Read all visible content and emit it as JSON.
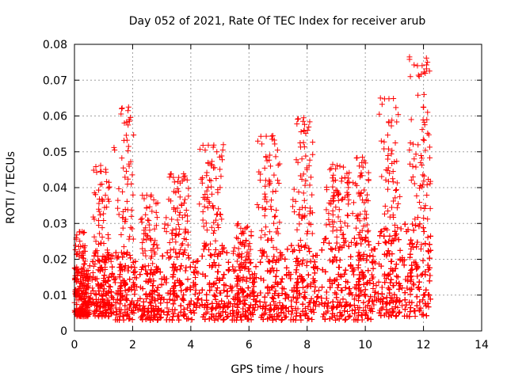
{
  "chart_data": {
    "type": "scatter",
    "title": "Day 052 of 2021, Rate Of TEC Index for receiver arub",
    "xlabel": "GPS time / hours",
    "ylabel": "ROTI / TECUs",
    "xlim": [
      0,
      14
    ],
    "ylim": [
      0,
      0.08
    ],
    "x_ticks": [
      "0",
      "2",
      "4",
      "6",
      "8",
      "10",
      "12",
      "14"
    ],
    "y_ticks": [
      "0",
      "0.01",
      "0.02",
      "0.03",
      "0.04",
      "0.05",
      "0.06",
      "0.07",
      "0.08"
    ],
    "grid": true,
    "marker": "+",
    "color": "#ff0000",
    "x_range_of_data": [
      0,
      12.25
    ],
    "notable_points": [
      {
        "x": 11.52,
        "y": 0.0765
      },
      {
        "x": 11.52,
        "y": 0.0758
      },
      {
        "x": 11.55,
        "y": 0.071
      },
      {
        "x": 10.52,
        "y": 0.065
      },
      {
        "x": 1.86,
        "y": 0.0625
      },
      {
        "x": 1.84,
        "y": 0.0615
      },
      {
        "x": 1.88,
        "y": 0.059
      },
      {
        "x": 7.88,
        "y": 0.0595
      },
      {
        "x": 7.86,
        "y": 0.0585
      },
      {
        "x": 10.48,
        "y": 0.0605
      },
      {
        "x": 11.58,
        "y": 0.059
      },
      {
        "x": 7.9,
        "y": 0.056
      },
      {
        "x": 6.82,
        "y": 0.0545
      },
      {
        "x": 6.8,
        "y": 0.0535
      },
      {
        "x": 10.55,
        "y": 0.053
      },
      {
        "x": 11.55,
        "y": 0.0525
      },
      {
        "x": 12.02,
        "y": 0.0532
      },
      {
        "x": 5.12,
        "y": 0.052
      },
      {
        "x": 1.86,
        "y": 0.0515
      },
      {
        "x": 1.36,
        "y": 0.0512
      },
      {
        "x": 1.38,
        "y": 0.0505
      },
      {
        "x": 11.52,
        "y": 0.0505
      },
      {
        "x": 7.76,
        "y": 0.0525
      },
      {
        "x": 5.1,
        "y": 0.0505
      },
      {
        "x": 9.9,
        "y": 0.0485
      },
      {
        "x": 9.96,
        "y": 0.0475
      },
      {
        "x": 9.88,
        "y": 0.047
      },
      {
        "x": 8.88,
        "y": 0.0465
      },
      {
        "x": 4.72,
        "y": 0.0465
      },
      {
        "x": 4.78,
        "y": 0.0455
      },
      {
        "x": 0.9,
        "y": 0.0462
      },
      {
        "x": 0.92,
        "y": 0.0445
      },
      {
        "x": 1.68,
        "y": 0.0455
      },
      {
        "x": 5.08,
        "y": 0.0478
      },
      {
        "x": 7.82,
        "y": 0.048
      },
      {
        "x": 6.74,
        "y": 0.046
      },
      {
        "x": 11.9,
        "y": 0.047
      },
      {
        "x": 11.68,
        "y": 0.048
      },
      {
        "x": 0.08,
        "y": 0.0268
      },
      {
        "x": 0.06,
        "y": 0.026
      }
    ],
    "clusters": [
      {
        "x_range": [
          0.0,
          0.5
        ],
        "base_range": [
          0.004,
          0.018
        ],
        "peak": 0.028
      },
      {
        "x_range": [
          0.5,
          1.3
        ],
        "base_range": [
          0.004,
          0.022
        ],
        "peak": 0.046
      },
      {
        "x_range": [
          1.3,
          2.1
        ],
        "base_range": [
          0.003,
          0.022
        ],
        "peak": 0.0625
      },
      {
        "x_range": [
          2.1,
          3.0
        ],
        "base_range": [
          0.003,
          0.018
        ],
        "peak": 0.038
      },
      {
        "x_range": [
          3.0,
          4.2
        ],
        "base_range": [
          0.003,
          0.022
        ],
        "peak": 0.044
      },
      {
        "x_range": [
          4.2,
          5.3
        ],
        "base_range": [
          0.003,
          0.024
        ],
        "peak": 0.052
      },
      {
        "x_range": [
          5.3,
          6.2
        ],
        "base_range": [
          0.003,
          0.018
        ],
        "peak": 0.03
      },
      {
        "x_range": [
          6.2,
          7.3
        ],
        "base_range": [
          0.003,
          0.022
        ],
        "peak": 0.0545
      },
      {
        "x_range": [
          7.3,
          8.3
        ],
        "base_range": [
          0.003,
          0.024
        ],
        "peak": 0.0595
      },
      {
        "x_range": [
          8.3,
          9.5
        ],
        "base_range": [
          0.003,
          0.026
        ],
        "peak": 0.0465
      },
      {
        "x_range": [
          9.5,
          10.3
        ],
        "base_range": [
          0.003,
          0.026
        ],
        "peak": 0.0485
      },
      {
        "x_range": [
          10.3,
          11.2
        ],
        "base_range": [
          0.004,
          0.028
        ],
        "peak": 0.065
      },
      {
        "x_range": [
          11.2,
          12.25
        ],
        "base_range": [
          0.004,
          0.03
        ],
        "peak": 0.0765
      }
    ]
  }
}
